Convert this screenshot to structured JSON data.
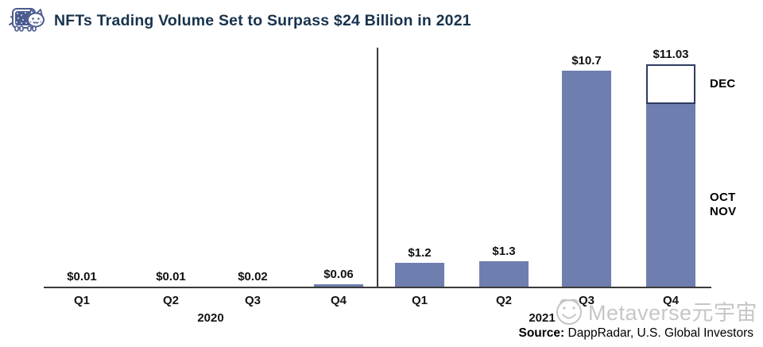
{
  "header": {
    "title": "NFTs Trading Volume Set to Surpass $24 Billion in 2021",
    "title_color": "#17334d",
    "icon": "nyan-cat-icon"
  },
  "chart_data": {
    "type": "bar",
    "title": "NFTs Trading Volume Set to Surpass $24 Billion in 2021",
    "unit_hint": "USD billions",
    "categories": [
      "Q1",
      "Q2",
      "Q3",
      "Q4"
    ],
    "series": [
      {
        "name": "2020",
        "values": [
          0.01,
          0.01,
          0.02,
          0.06
        ],
        "labels": [
          "$0.01",
          "$0.01",
          "$0.02",
          "$0.06"
        ]
      },
      {
        "name": "2021",
        "values": [
          1.2,
          1.3,
          10.7,
          11.03
        ],
        "labels": [
          "$1.2",
          "$1.3",
          "$10.7",
          "$11.03"
        ]
      }
    ],
    "stacked_segment": {
      "bar": "2021 Q4",
      "solid_labels": [
        "OCT",
        "NOV"
      ],
      "outline_label": "DEC",
      "solid_fraction_est": 0.82
    },
    "bar_color": "#6e7eae",
    "outline_border_color": "#2e3b61",
    "axis_color": "#3b3b3b",
    "gridlines": false,
    "legend": false,
    "ylim": [
      0,
      12
    ]
  },
  "source": {
    "label": "Source:",
    "text": " DappRadar, U.S. Global Investors"
  },
  "watermark": {
    "icon": "cat-face-icon",
    "text": "Metaverse元宇宙",
    "color": "#c6c6c6"
  }
}
